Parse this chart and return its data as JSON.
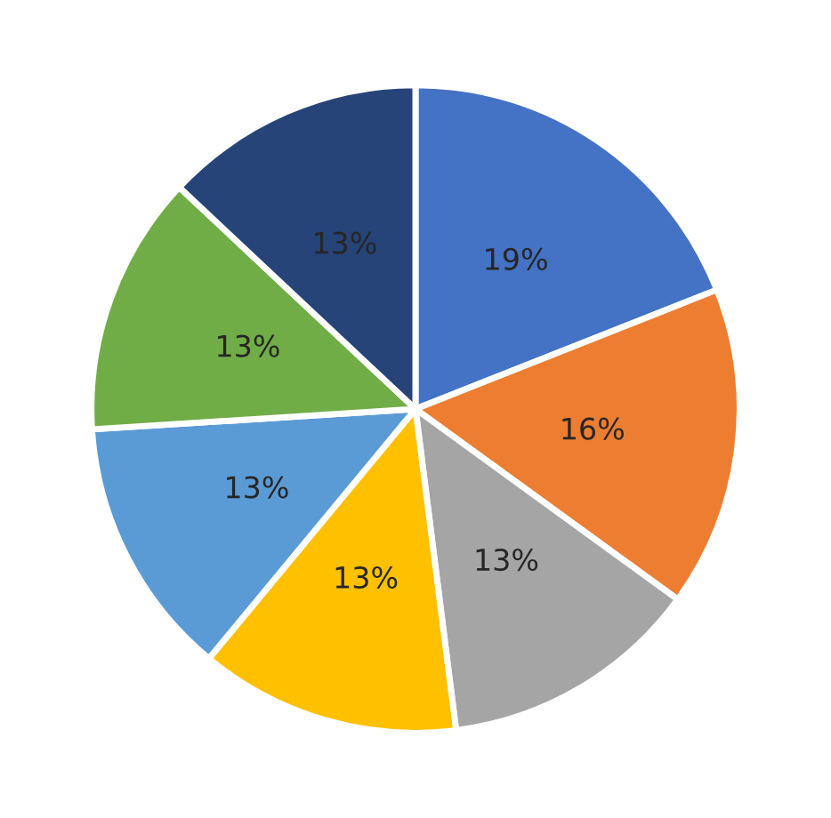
{
  "chart_data": {
    "type": "pie",
    "categories": [
      null,
      null,
      null,
      null,
      null,
      null,
      null
    ],
    "values": [
      19,
      16,
      13,
      13,
      13,
      13,
      13
    ],
    "colors": [
      "#4472c4",
      "#ed7d31",
      "#a5a5a5",
      "#ffc000",
      "#5b9bd5",
      "#70ad47",
      "#264478"
    ],
    "value_labels": [
      "19%",
      "16%",
      "13%",
      "13%",
      "13%",
      "13%",
      "13%"
    ]
  }
}
